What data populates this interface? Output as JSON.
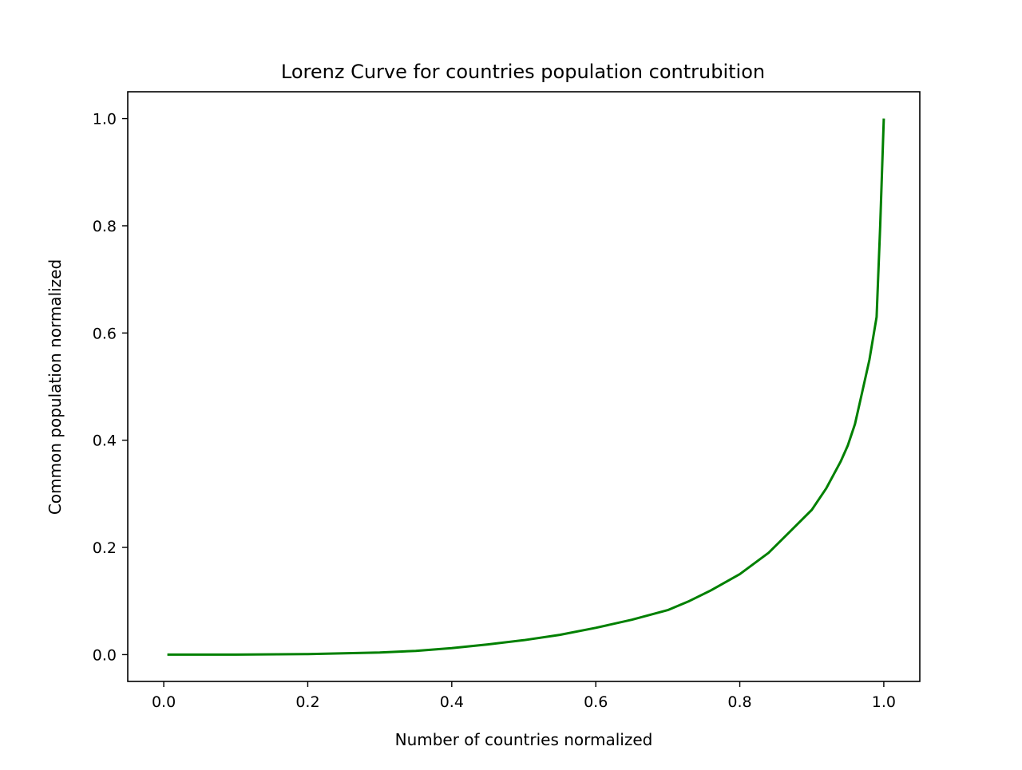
{
  "chart_data": {
    "type": "line",
    "title": "Lorenz Curve for countries population contrubition",
    "xlabel": "Number of countries normalized",
    "ylabel": "Common population normalized",
    "xlim": [
      -0.05,
      1.05
    ],
    "ylim": [
      -0.05,
      1.05
    ],
    "xticks": [
      0.0,
      0.2,
      0.4,
      0.6,
      0.8,
      1.0
    ],
    "xtick_labels": [
      "0.0",
      "0.2",
      "0.4",
      "0.6",
      "0.8",
      "1.0"
    ],
    "yticks": [
      0.0,
      0.2,
      0.4,
      0.6,
      0.8,
      1.0
    ],
    "ytick_labels": [
      "0.0",
      "0.2",
      "0.4",
      "0.6",
      "0.8",
      "1.0"
    ],
    "grid": false,
    "series": [
      {
        "color": "#008000",
        "x": [
          0.005,
          0.1,
          0.2,
          0.3,
          0.35,
          0.4,
          0.45,
          0.5,
          0.55,
          0.6,
          0.65,
          0.7,
          0.73,
          0.76,
          0.8,
          0.84,
          0.87,
          0.9,
          0.92,
          0.94,
          0.95,
          0.96,
          0.97,
          0.98,
          0.99,
          0.995,
          1.0
        ],
        "y": [
          0.0,
          0.0,
          0.001,
          0.004,
          0.007,
          0.012,
          0.019,
          0.027,
          0.037,
          0.05,
          0.065,
          0.083,
          0.1,
          0.12,
          0.15,
          0.19,
          0.23,
          0.27,
          0.31,
          0.36,
          0.39,
          0.43,
          0.49,
          0.55,
          0.63,
          0.8,
          1.0
        ]
      }
    ]
  }
}
